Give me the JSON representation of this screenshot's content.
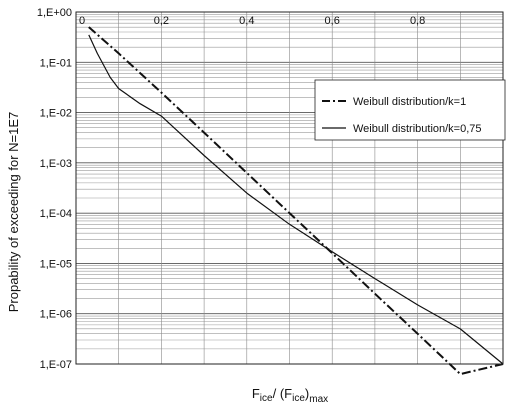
{
  "chart_data": {
    "type": "line",
    "title": "",
    "xlabel": {
      "main": "F",
      "sub1": "ice",
      "mid": "/ (F",
      "sub2": "ice",
      "close": ")",
      "sub3": "max"
    },
    "ylabel": "Propability of exceeding for N=1E7",
    "xlim": [
      0,
      1
    ],
    "ylim_log10": [
      -7,
      0
    ],
    "y_scale": "log",
    "x_tick_values": [
      0,
      0.2,
      0.4,
      0.6,
      0.8
    ],
    "x_tick_labels": [
      "0",
      "0,2",
      "0,4",
      "0,6",
      "0,8"
    ],
    "y_tick_values": [
      0,
      -1,
      -2,
      -3,
      -4,
      -5,
      -6,
      -7
    ],
    "y_tick_labels": [
      "1,E+00",
      "1,E-01",
      "1,E-02",
      "1,E-03",
      "1,E-04",
      "1,E-05",
      "1,E-06",
      "1,E-07"
    ],
    "grid": "horizontal log minor and major, vertical at 0.1 steps",
    "legend_position": "right-upper",
    "series": [
      {
        "name": "Weibull distribution/k=1",
        "style": "dash-dot",
        "color": "#111111",
        "x": [
          0.03,
          0.1,
          0.2,
          0.3,
          0.4,
          0.5,
          0.6,
          0.7,
          0.8,
          0.9,
          1.0
        ],
        "y": [
          0.5,
          0.15,
          0.025,
          0.004,
          0.00063,
          0.0001,
          1.6e-05,
          2.5e-06,
          4e-07,
          6.3e-08,
          1e-07
        ]
      },
      {
        "name": "Weibull distribution/k=0,75",
        "style": "solid",
        "color": "#111111",
        "x": [
          0.03,
          0.05,
          0.08,
          0.1,
          0.15,
          0.2,
          0.3,
          0.4,
          0.5,
          0.6,
          0.7,
          0.8,
          0.9,
          1.0
        ],
        "y": [
          0.35,
          0.15,
          0.05,
          0.03,
          0.015,
          0.0085,
          0.0014,
          0.00025,
          6e-05,
          1.7e-05,
          5e-06,
          1.5e-06,
          5e-07,
          1e-07
        ]
      }
    ]
  }
}
